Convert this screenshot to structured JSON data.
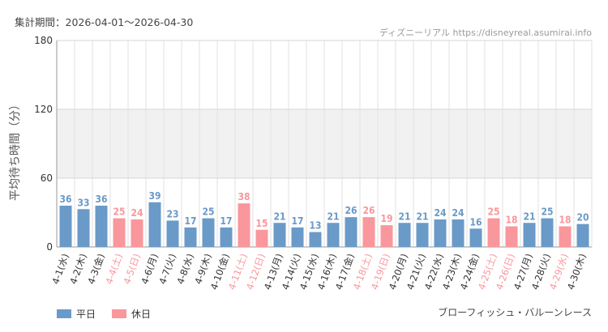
{
  "header": {
    "period": "集計期間：2026-04-01～2026-04-30",
    "source": "ディズニーリアル https://disneyreal.asumirai.info"
  },
  "legend": {
    "weekday": "平日",
    "holiday": "休日"
  },
  "footer": {
    "attraction": "ブローフィッシュ・バルーンレース"
  },
  "colors": {
    "weekday": "#6a9ac8",
    "holiday": "#f9979c",
    "band": "#f1f1f1",
    "grid": "#e2e2e2"
  },
  "chart_data": {
    "type": "bar",
    "ylabel": "平均待ち時間（分）",
    "ylim": [
      0,
      180
    ],
    "yticks": [
      0,
      60,
      120,
      180
    ],
    "band": [
      60,
      120
    ],
    "categories": [
      "4-1(水)",
      "4-2(木)",
      "4-3(金)",
      "4-4(土)",
      "4-5(日)",
      "4-6(月)",
      "4-7(火)",
      "4-8(水)",
      "4-9(木)",
      "4-10(金)",
      "4-11(土)",
      "4-12(日)",
      "4-13(月)",
      "4-14(火)",
      "4-15(水)",
      "4-16(木)",
      "4-17(金)",
      "4-18(土)",
      "4-19(日)",
      "4-20(月)",
      "4-21(火)",
      "4-22(水)",
      "4-23(木)",
      "4-24(金)",
      "4-25(土)",
      "4-26(日)",
      "4-27(月)",
      "4-28(火)",
      "4-29(水)",
      "4-30(木)"
    ],
    "values": [
      36,
      33,
      36,
      25,
      24,
      39,
      23,
      17,
      25,
      17,
      38,
      15,
      21,
      17,
      13,
      21,
      26,
      26,
      19,
      21,
      21,
      24,
      24,
      16,
      25,
      18,
      21,
      25,
      18,
      20
    ],
    "day_type": [
      "weekday",
      "weekday",
      "weekday",
      "holiday",
      "holiday",
      "weekday",
      "weekday",
      "weekday",
      "weekday",
      "weekday",
      "holiday",
      "holiday",
      "weekday",
      "weekday",
      "weekday",
      "weekday",
      "weekday",
      "holiday",
      "holiday",
      "weekday",
      "weekday",
      "weekday",
      "weekday",
      "weekday",
      "holiday",
      "holiday",
      "weekday",
      "weekday",
      "holiday",
      "weekday"
    ]
  }
}
